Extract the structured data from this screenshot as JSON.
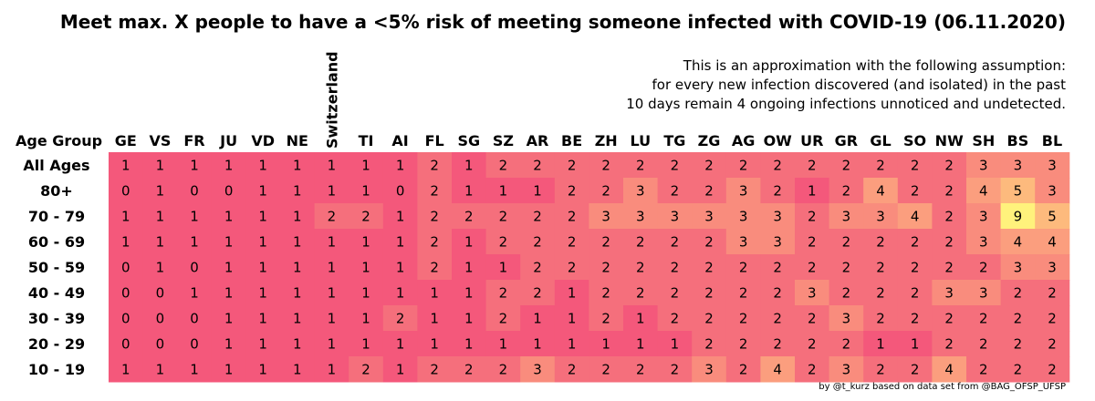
{
  "chart_data": {
    "type": "heatmap",
    "title": "Meet max. X people to have a <5% risk of meeting someone infected with COVID-19 (06.11.2020)",
    "note_lines": [
      "This is an approximation with the following assumption:",
      "for every new infection discovered (and isolated) in the past",
      "10 days remain 4 ongoing infections unnoticed and undetected."
    ],
    "row_header": "Age Group",
    "columns": [
      "GE",
      "VS",
      "FR",
      "JU",
      "VD",
      "NE",
      "Switzerland",
      "TI",
      "AI",
      "FL",
      "SG",
      "SZ",
      "AR",
      "BE",
      "ZH",
      "LU",
      "TG",
      "ZG",
      "AG",
      "OW",
      "UR",
      "GR",
      "GL",
      "SO",
      "NW",
      "SH",
      "BS",
      "BL"
    ],
    "rows": [
      "All Ages",
      "80+",
      "70 - 79",
      "60 - 69",
      "50 - 59",
      "40 - 49",
      "30 - 39",
      "20 - 29",
      "10 - 19"
    ],
    "values": [
      [
        1,
        1,
        1,
        1,
        1,
        1,
        1,
        1,
        1,
        2,
        1,
        2,
        2,
        2,
        2,
        2,
        2,
        2,
        2,
        2,
        2,
        2,
        2,
        2,
        2,
        3,
        3,
        3
      ],
      [
        0,
        1,
        0,
        0,
        1,
        1,
        1,
        1,
        0,
        2,
        1,
        1,
        1,
        2,
        2,
        3,
        2,
        2,
        3,
        2,
        1,
        2,
        4,
        2,
        2,
        4,
        5,
        3
      ],
      [
        1,
        1,
        1,
        1,
        1,
        1,
        2,
        2,
        1,
        2,
        2,
        2,
        2,
        2,
        3,
        3,
        3,
        3,
        3,
        3,
        2,
        3,
        3,
        4,
        2,
        3,
        9,
        5
      ],
      [
        1,
        1,
        1,
        1,
        1,
        1,
        1,
        1,
        1,
        2,
        1,
        2,
        2,
        2,
        2,
        2,
        2,
        2,
        3,
        3,
        2,
        2,
        2,
        2,
        2,
        3,
        4,
        4
      ],
      [
        0,
        1,
        0,
        1,
        1,
        1,
        1,
        1,
        1,
        2,
        1,
        1,
        2,
        2,
        2,
        2,
        2,
        2,
        2,
        2,
        2,
        2,
        2,
        2,
        2,
        2,
        3,
        3
      ],
      [
        0,
        0,
        1,
        1,
        1,
        1,
        1,
        1,
        1,
        1,
        1,
        2,
        2,
        1,
        2,
        2,
        2,
        2,
        2,
        2,
        3,
        2,
        2,
        2,
        3,
        3,
        2,
        2
      ],
      [
        0,
        0,
        0,
        1,
        1,
        1,
        1,
        1,
        2,
        1,
        1,
        2,
        1,
        1,
        2,
        1,
        2,
        2,
        2,
        2,
        2,
        3,
        2,
        2,
        2,
        2,
        2,
        2
      ],
      [
        0,
        0,
        0,
        1,
        1,
        1,
        1,
        1,
        1,
        1,
        1,
        1,
        1,
        1,
        1,
        1,
        1,
        2,
        2,
        2,
        2,
        2,
        1,
        1,
        2,
        2,
        2,
        2
      ],
      [
        1,
        1,
        1,
        1,
        1,
        1,
        1,
        2,
        1,
        2,
        2,
        2,
        3,
        2,
        2,
        2,
        2,
        3,
        2,
        4,
        2,
        3,
        2,
        2,
        4,
        2,
        2,
        2
      ]
    ],
    "color_scale": [
      "#f4587b",
      "#f56f7c",
      "#f98c7d",
      "#fb9e7e",
      "#fdba7d",
      "#fff27c"
    ],
    "legend": "none",
    "grid": false
  },
  "footer": "by @t_kurz based on data set from @BAG_OFSP_UFSP"
}
